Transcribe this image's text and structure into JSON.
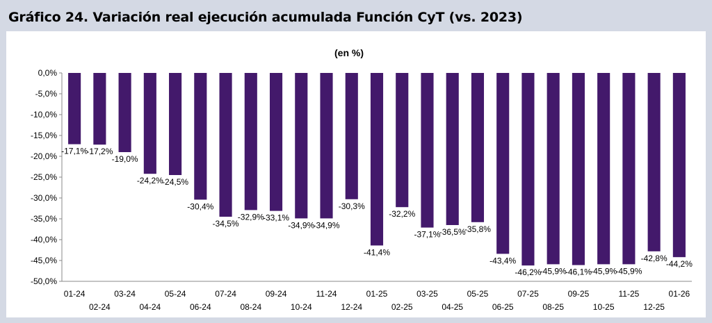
{
  "title": "Gráfico 24. Variación real ejecución acumulada Función CyT (vs. 2023)",
  "chart_data": {
    "type": "bar",
    "subtitle": "(en %)",
    "categories": [
      "01-24",
      "02-24",
      "03-24",
      "04-24",
      "05-24",
      "06-24",
      "07-24",
      "08-24",
      "09-24",
      "10-24",
      "11-24",
      "12-24",
      "01-25",
      "02-25",
      "03-25",
      "04-25",
      "05-25",
      "06-25",
      "07-25",
      "08-25",
      "09-25",
      "10-25",
      "11-25",
      "12-25",
      "01-26"
    ],
    "values": [
      -17.1,
      -17.2,
      -19.0,
      -24.2,
      -24.5,
      -30.4,
      -34.5,
      -32.9,
      -33.1,
      -34.9,
      -34.9,
      -30.3,
      -41.4,
      -32.2,
      -37.1,
      -36.5,
      -35.8,
      -43.4,
      -46.2,
      -45.9,
      -46.1,
      -45.9,
      -45.9,
      -42.8,
      -44.2
    ],
    "value_labels": [
      "-17,1%",
      "-17,2%",
      "-19,0%",
      "-24,2%",
      "-24,5%",
      "-30,4%",
      "-34,5%",
      "-32,9%",
      "-33,1%",
      "-34,9%",
      "-34,9%",
      "-30,3%",
      "-41,4%",
      "-32,2%",
      "-37,1%",
      "-36,5%",
      "-35,8%",
      "-43,4%",
      "-46,2%",
      "-45,9%",
      "-46,1%",
      "-45,9%",
      "-45,9%",
      "-42,8%",
      "-44,2%"
    ],
    "ylim": [
      -50,
      0
    ],
    "yticks": [
      "0,0%",
      "-5,0%",
      "-10,0%",
      "-15,0%",
      "-20,0%",
      "-25,0%",
      "-30,0%",
      "-35,0%",
      "-40,0%",
      "-45,0%",
      "-50,0%"
    ],
    "xlabel": "",
    "ylabel": "",
    "bar_color": "#43196b",
    "grid": false,
    "legend": "none"
  }
}
